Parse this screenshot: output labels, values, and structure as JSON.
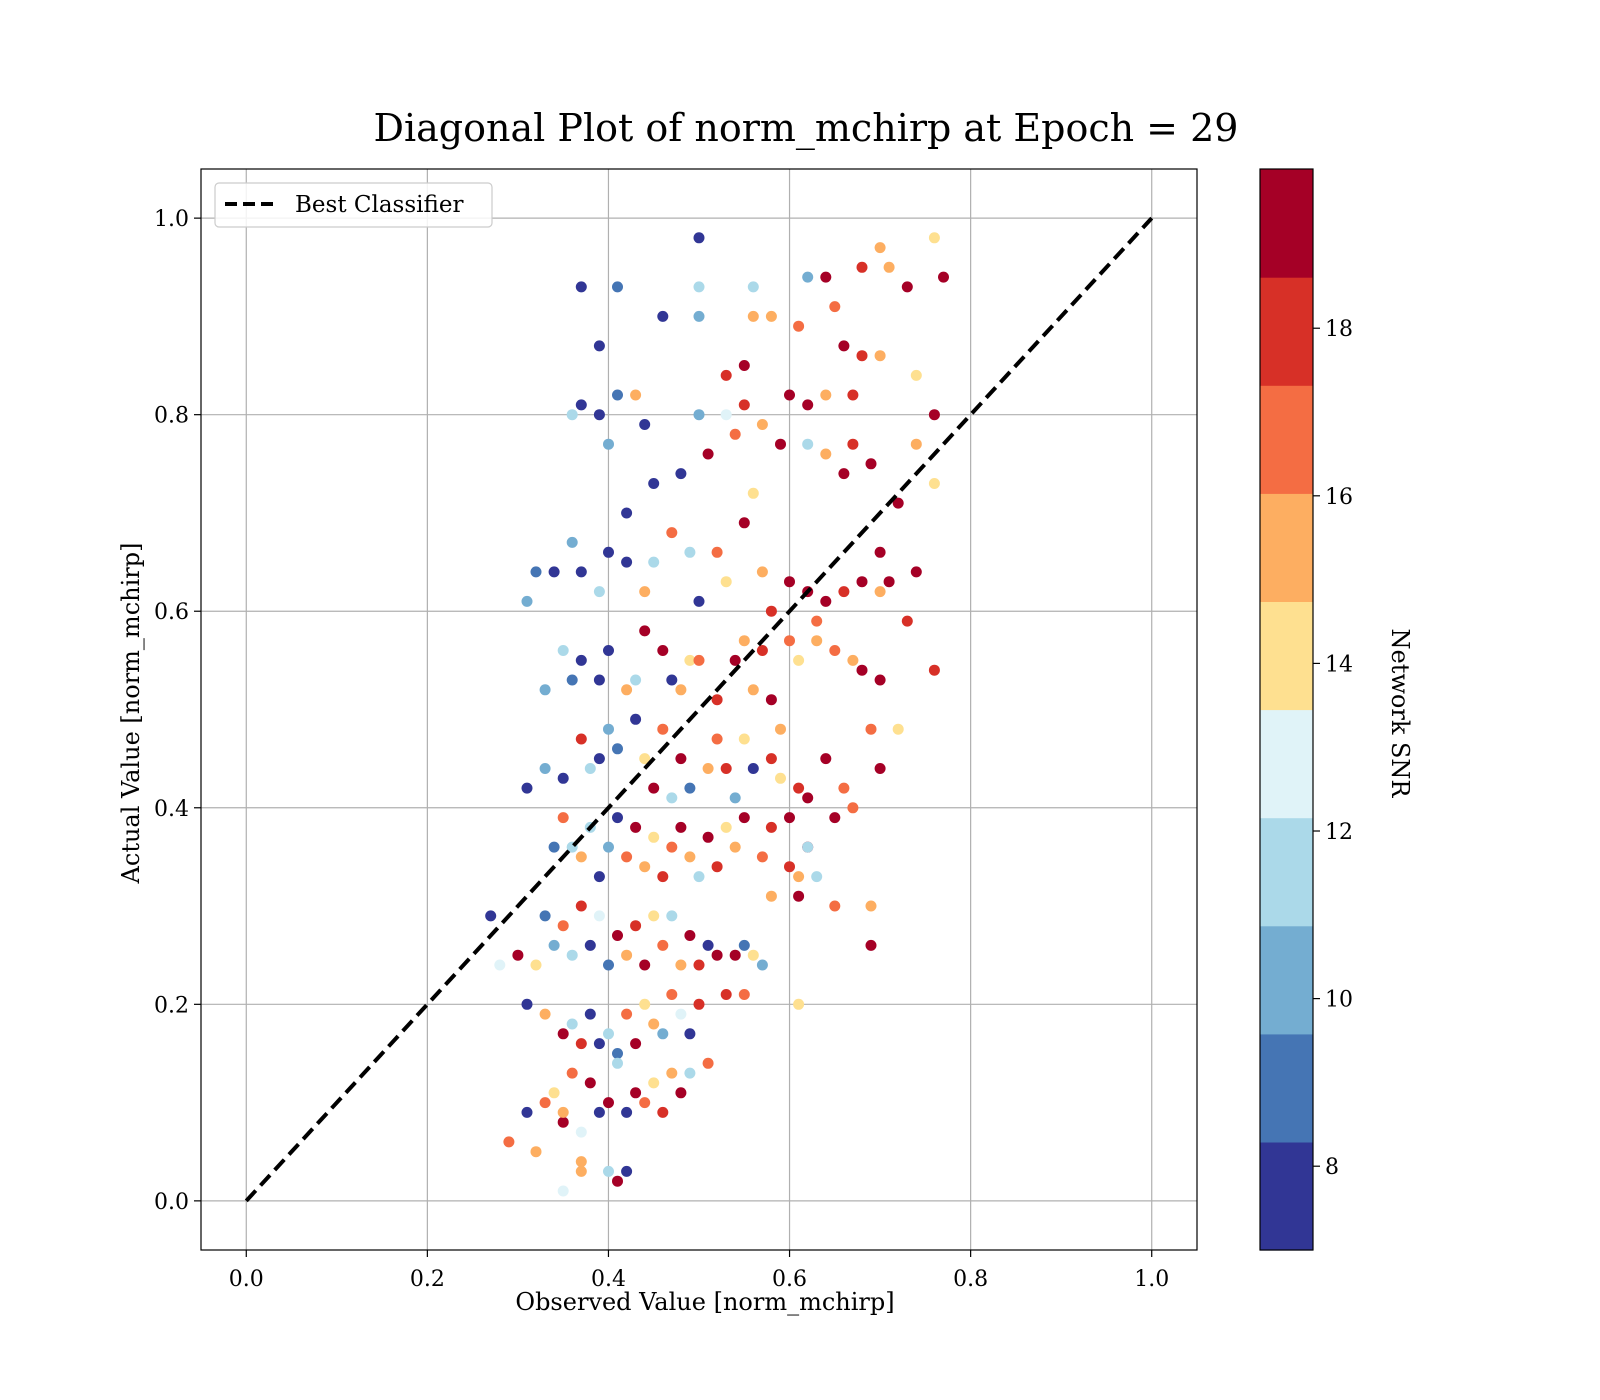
{
  "chart_data": {
    "type": "scatter",
    "title": "Diagonal Plot of norm_mchirp at Epoch = 29",
    "xlabel": "Observed Value [norm_mchirp]",
    "ylabel": "Actual Value [norm_mchirp]",
    "xlim": [
      -0.05,
      1.05
    ],
    "ylim": [
      -0.05,
      1.05
    ],
    "xticks": [
      "0.0",
      "0.2",
      "0.4",
      "0.6",
      "0.8",
      "1.0"
    ],
    "yticks": [
      "0.0",
      "0.2",
      "0.4",
      "0.6",
      "0.8",
      "1.0"
    ],
    "grid": true,
    "legend": {
      "placement": "top-left",
      "entries": [
        "Best Classifier"
      ]
    },
    "reference_line": {
      "name": "Best Classifier",
      "style": "dashed",
      "color": "#000000",
      "from": [
        0,
        0
      ],
      "to": [
        1,
        1
      ]
    },
    "colorbar": {
      "label": "Network SNR",
      "range": [
        7,
        19.9
      ],
      "ticks": [
        "8",
        "10",
        "12",
        "14",
        "16",
        "18"
      ],
      "colormap": "RdYlBu_r (10 discrete levels)",
      "colors": [
        "#313695",
        "#4575b4",
        "#74add1",
        "#abd9e9",
        "#e0f3f8",
        "#fee090",
        "#fdae61",
        "#f46d43",
        "#d73027",
        "#a50026"
      ]
    },
    "points": [
      [
        0.5,
        0.98,
        7.5
      ],
      [
        0.41,
        0.93,
        9
      ],
      [
        0.37,
        0.93,
        8
      ],
      [
        0.5,
        0.93,
        12
      ],
      [
        0.56,
        0.93,
        11
      ],
      [
        0.62,
        0.94,
        10
      ],
      [
        0.64,
        0.94,
        19
      ],
      [
        0.7,
        0.97,
        16
      ],
      [
        0.76,
        0.98,
        14
      ],
      [
        0.77,
        0.94,
        19
      ],
      [
        0.73,
        0.93,
        19
      ],
      [
        0.71,
        0.95,
        16
      ],
      [
        0.68,
        0.95,
        18
      ],
      [
        0.39,
        0.87,
        7.5
      ],
      [
        0.46,
        0.9,
        8
      ],
      [
        0.5,
        0.9,
        10
      ],
      [
        0.56,
        0.9,
        16
      ],
      [
        0.58,
        0.9,
        15
      ],
      [
        0.61,
        0.89,
        17
      ],
      [
        0.65,
        0.91,
        17
      ],
      [
        0.53,
        0.84,
        18
      ],
      [
        0.55,
        0.85,
        19
      ],
      [
        0.66,
        0.87,
        19
      ],
      [
        0.68,
        0.86,
        18
      ],
      [
        0.7,
        0.86,
        15
      ],
      [
        0.74,
        0.84,
        14
      ],
      [
        0.37,
        0.81,
        8
      ],
      [
        0.39,
        0.8,
        8
      ],
      [
        0.41,
        0.82,
        9
      ],
      [
        0.43,
        0.82,
        15
      ],
      [
        0.44,
        0.79,
        8
      ],
      [
        0.5,
        0.8,
        10
      ],
      [
        0.53,
        0.8,
        13
      ],
      [
        0.55,
        0.81,
        18
      ],
      [
        0.57,
        0.79,
        15
      ],
      [
        0.6,
        0.82,
        19
      ],
      [
        0.62,
        0.81,
        19
      ],
      [
        0.64,
        0.82,
        15
      ],
      [
        0.67,
        0.82,
        18
      ],
      [
        0.76,
        0.8,
        19
      ],
      [
        0.36,
        0.8,
        11
      ],
      [
        0.4,
        0.77,
        10
      ],
      [
        0.42,
        0.7,
        8
      ],
      [
        0.45,
        0.73,
        7.5
      ],
      [
        0.48,
        0.74,
        8
      ],
      [
        0.51,
        0.76,
        19
      ],
      [
        0.54,
        0.78,
        17
      ],
      [
        0.56,
        0.72,
        14
      ],
      [
        0.59,
        0.77,
        19
      ],
      [
        0.62,
        0.77,
        12
      ],
      [
        0.64,
        0.76,
        16
      ],
      [
        0.66,
        0.74,
        19
      ],
      [
        0.67,
        0.77,
        18
      ],
      [
        0.69,
        0.75,
        19
      ],
      [
        0.72,
        0.71,
        19
      ],
      [
        0.74,
        0.77,
        15
      ],
      [
        0.76,
        0.73,
        14
      ],
      [
        0.31,
        0.61,
        10
      ],
      [
        0.32,
        0.64,
        9
      ],
      [
        0.34,
        0.64,
        8
      ],
      [
        0.36,
        0.67,
        10
      ],
      [
        0.37,
        0.64,
        7.5
      ],
      [
        0.39,
        0.62,
        11
      ],
      [
        0.4,
        0.66,
        8
      ],
      [
        0.42,
        0.65,
        8
      ],
      [
        0.44,
        0.62,
        16
      ],
      [
        0.45,
        0.65,
        11
      ],
      [
        0.47,
        0.68,
        17
      ],
      [
        0.49,
        0.66,
        12
      ],
      [
        0.5,
        0.61,
        8
      ],
      [
        0.52,
        0.66,
        17
      ],
      [
        0.53,
        0.63,
        14
      ],
      [
        0.55,
        0.69,
        19
      ],
      [
        0.57,
        0.64,
        16
      ],
      [
        0.58,
        0.6,
        18
      ],
      [
        0.6,
        0.63,
        19
      ],
      [
        0.62,
        0.62,
        19
      ],
      [
        0.63,
        0.59,
        17
      ],
      [
        0.64,
        0.61,
        19
      ],
      [
        0.66,
        0.62,
        18
      ],
      [
        0.68,
        0.63,
        19
      ],
      [
        0.7,
        0.66,
        19
      ],
      [
        0.71,
        0.63,
        19
      ],
      [
        0.74,
        0.64,
        19
      ],
      [
        0.73,
        0.59,
        18
      ],
      [
        0.7,
        0.62,
        15
      ],
      [
        0.33,
        0.52,
        10
      ],
      [
        0.35,
        0.56,
        11
      ],
      [
        0.36,
        0.53,
        9
      ],
      [
        0.37,
        0.55,
        8
      ],
      [
        0.39,
        0.53,
        8
      ],
      [
        0.4,
        0.56,
        8
      ],
      [
        0.42,
        0.52,
        16
      ],
      [
        0.43,
        0.53,
        12
      ],
      [
        0.44,
        0.58,
        19
      ],
      [
        0.46,
        0.56,
        19
      ],
      [
        0.47,
        0.53,
        8
      ],
      [
        0.48,
        0.52,
        16
      ],
      [
        0.49,
        0.55,
        14
      ],
      [
        0.5,
        0.55,
        17
      ],
      [
        0.52,
        0.51,
        18
      ],
      [
        0.54,
        0.55,
        19
      ],
      [
        0.55,
        0.57,
        16
      ],
      [
        0.56,
        0.52,
        15
      ],
      [
        0.57,
        0.56,
        18
      ],
      [
        0.58,
        0.51,
        19
      ],
      [
        0.6,
        0.57,
        17
      ],
      [
        0.61,
        0.55,
        14
      ],
      [
        0.63,
        0.57,
        16
      ],
      [
        0.65,
        0.56,
        17
      ],
      [
        0.67,
        0.55,
        15
      ],
      [
        0.68,
        0.54,
        19
      ],
      [
        0.7,
        0.53,
        19
      ],
      [
        0.76,
        0.54,
        18
      ],
      [
        0.31,
        0.42,
        8
      ],
      [
        0.33,
        0.44,
        10
      ],
      [
        0.35,
        0.43,
        7.5
      ],
      [
        0.37,
        0.47,
        18
      ],
      [
        0.38,
        0.44,
        12
      ],
      [
        0.39,
        0.45,
        8
      ],
      [
        0.4,
        0.48,
        10
      ],
      [
        0.41,
        0.46,
        9
      ],
      [
        0.43,
        0.49,
        8
      ],
      [
        0.44,
        0.45,
        14
      ],
      [
        0.45,
        0.42,
        19
      ],
      [
        0.46,
        0.48,
        17
      ],
      [
        0.47,
        0.41,
        11
      ],
      [
        0.48,
        0.45,
        19
      ],
      [
        0.49,
        0.42,
        9
      ],
      [
        0.51,
        0.44,
        15
      ],
      [
        0.52,
        0.47,
        17
      ],
      [
        0.53,
        0.44,
        18
      ],
      [
        0.54,
        0.41,
        10
      ],
      [
        0.55,
        0.47,
        14
      ],
      [
        0.56,
        0.44,
        8
      ],
      [
        0.58,
        0.45,
        18
      ],
      [
        0.59,
        0.43,
        14
      ],
      [
        0.61,
        0.42,
        18
      ],
      [
        0.62,
        0.41,
        19
      ],
      [
        0.64,
        0.45,
        19
      ],
      [
        0.66,
        0.42,
        17
      ],
      [
        0.69,
        0.48,
        17
      ],
      [
        0.7,
        0.44,
        19
      ],
      [
        0.72,
        0.48,
        14
      ],
      [
        0.59,
        0.48,
        16
      ],
      [
        0.34,
        0.36,
        9
      ],
      [
        0.35,
        0.39,
        17
      ],
      [
        0.36,
        0.36,
        12
      ],
      [
        0.37,
        0.35,
        15
      ],
      [
        0.38,
        0.38,
        11
      ],
      [
        0.39,
        0.33,
        8
      ],
      [
        0.4,
        0.36,
        10
      ],
      [
        0.41,
        0.39,
        7.5
      ],
      [
        0.42,
        0.35,
        17
      ],
      [
        0.43,
        0.38,
        19
      ],
      [
        0.44,
        0.34,
        16
      ],
      [
        0.45,
        0.37,
        14
      ],
      [
        0.46,
        0.33,
        18
      ],
      [
        0.47,
        0.36,
        17
      ],
      [
        0.48,
        0.38,
        19
      ],
      [
        0.49,
        0.35,
        15
      ],
      [
        0.5,
        0.33,
        12
      ],
      [
        0.51,
        0.37,
        19
      ],
      [
        0.52,
        0.34,
        18
      ],
      [
        0.53,
        0.38,
        14
      ],
      [
        0.54,
        0.36,
        16
      ],
      [
        0.55,
        0.39,
        19
      ],
      [
        0.57,
        0.35,
        17
      ],
      [
        0.58,
        0.38,
        18
      ],
      [
        0.6,
        0.39,
        19
      ],
      [
        0.61,
        0.33,
        16
      ],
      [
        0.62,
        0.36,
        19
      ],
      [
        0.63,
        0.33,
        12
      ],
      [
        0.65,
        0.39,
        19
      ],
      [
        0.67,
        0.4,
        17
      ],
      [
        0.27,
        0.29,
        7.5
      ],
      [
        0.28,
        0.24,
        13
      ],
      [
        0.3,
        0.25,
        19
      ],
      [
        0.32,
        0.24,
        14
      ],
      [
        0.33,
        0.29,
        9
      ],
      [
        0.34,
        0.26,
        10
      ],
      [
        0.35,
        0.28,
        17
      ],
      [
        0.36,
        0.25,
        11
      ],
      [
        0.37,
        0.3,
        18
      ],
      [
        0.38,
        0.26,
        8
      ],
      [
        0.39,
        0.29,
        13
      ],
      [
        0.4,
        0.24,
        9
      ],
      [
        0.41,
        0.27,
        19
      ],
      [
        0.42,
        0.25,
        16
      ],
      [
        0.43,
        0.28,
        18
      ],
      [
        0.44,
        0.24,
        19
      ],
      [
        0.45,
        0.29,
        14
      ],
      [
        0.46,
        0.26,
        17
      ],
      [
        0.47,
        0.29,
        12
      ],
      [
        0.48,
        0.24,
        15
      ],
      [
        0.49,
        0.27,
        19
      ],
      [
        0.5,
        0.24,
        18
      ],
      [
        0.51,
        0.26,
        8
      ],
      [
        0.52,
        0.25,
        19
      ],
      [
        0.53,
        0.21,
        18
      ],
      [
        0.54,
        0.25,
        19
      ],
      [
        0.55,
        0.26,
        9
      ],
      [
        0.56,
        0.25,
        14
      ],
      [
        0.57,
        0.24,
        10
      ],
      [
        0.58,
        0.31,
        15
      ],
      [
        0.6,
        0.34,
        18
      ],
      [
        0.61,
        0.31,
        19
      ],
      [
        0.62,
        0.36,
        12
      ],
      [
        0.65,
        0.3,
        17
      ],
      [
        0.69,
        0.3,
        15
      ],
      [
        0.69,
        0.26,
        19
      ],
      [
        0.31,
        0.2,
        8
      ],
      [
        0.33,
        0.19,
        15
      ],
      [
        0.35,
        0.17,
        19
      ],
      [
        0.36,
        0.18,
        11
      ],
      [
        0.37,
        0.16,
        18
      ],
      [
        0.38,
        0.19,
        7.5
      ],
      [
        0.39,
        0.16,
        8
      ],
      [
        0.4,
        0.17,
        12
      ],
      [
        0.41,
        0.15,
        9
      ],
      [
        0.42,
        0.19,
        17
      ],
      [
        0.43,
        0.16,
        19
      ],
      [
        0.44,
        0.2,
        14
      ],
      [
        0.45,
        0.18,
        16
      ],
      [
        0.46,
        0.17,
        10
      ],
      [
        0.47,
        0.21,
        17
      ],
      [
        0.48,
        0.19,
        13
      ],
      [
        0.49,
        0.17,
        8
      ],
      [
        0.5,
        0.2,
        18
      ],
      [
        0.55,
        0.21,
        17
      ],
      [
        0.61,
        0.2,
        14
      ],
      [
        0.29,
        0.06,
        17
      ],
      [
        0.31,
        0.09,
        8
      ],
      [
        0.32,
        0.05,
        15
      ],
      [
        0.33,
        0.1,
        17
      ],
      [
        0.34,
        0.11,
        14
      ],
      [
        0.35,
        0.08,
        19
      ],
      [
        0.36,
        0.13,
        17
      ],
      [
        0.37,
        0.07,
        13
      ],
      [
        0.38,
        0.12,
        19
      ],
      [
        0.39,
        0.09,
        8
      ],
      [
        0.4,
        0.1,
        19
      ],
      [
        0.41,
        0.14,
        12
      ],
      [
        0.42,
        0.09,
        8
      ],
      [
        0.43,
        0.11,
        19
      ],
      [
        0.44,
        0.1,
        17
      ],
      [
        0.45,
        0.12,
        14
      ],
      [
        0.46,
        0.09,
        18
      ],
      [
        0.47,
        0.13,
        15
      ],
      [
        0.48,
        0.11,
        19
      ],
      [
        0.49,
        0.13,
        12
      ],
      [
        0.51,
        0.14,
        17
      ],
      [
        0.35,
        0.01,
        13
      ],
      [
        0.37,
        0.04,
        16
      ],
      [
        0.4,
        0.03,
        12
      ],
      [
        0.42,
        0.03,
        8
      ],
      [
        0.41,
        0.02,
        19
      ],
      [
        0.37,
        0.03,
        16
      ],
      [
        0.35,
        0.09,
        15
      ]
    ]
  }
}
